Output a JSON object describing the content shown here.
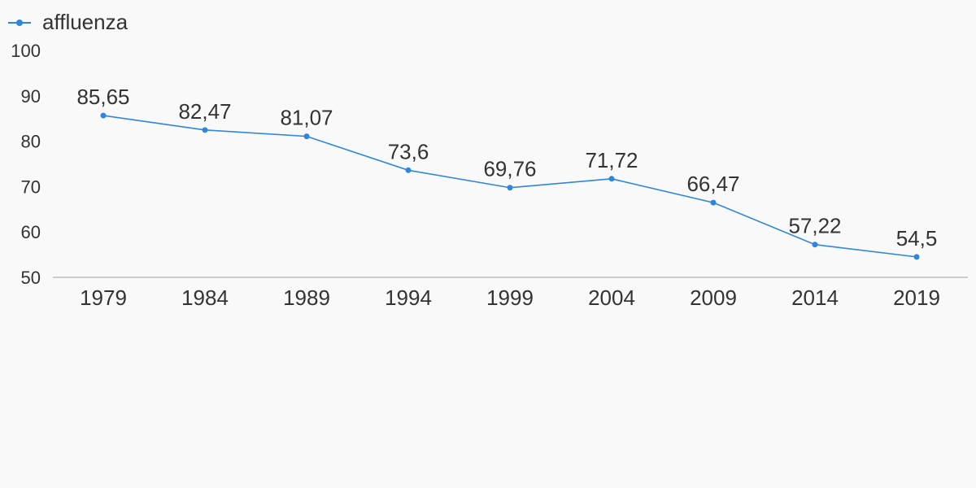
{
  "chart_data": {
    "type": "line",
    "categories": [
      "1979",
      "1984",
      "1989",
      "1994",
      "1999",
      "2004",
      "2009",
      "2014",
      "2019"
    ],
    "series": [
      {
        "name": "affluenza",
        "values": [
          85.65,
          82.47,
          81.07,
          73.6,
          69.76,
          71.72,
          66.47,
          57.22,
          54.5
        ],
        "labels": [
          "85,65",
          "82,47",
          "81,07",
          "73,6",
          "69,76",
          "71,72",
          "66,47",
          "57,22",
          "54,5"
        ]
      }
    ],
    "ylim": [
      50,
      100
    ],
    "yticks": [
      "50",
      "60",
      "70",
      "80",
      "90",
      "100"
    ],
    "legend": "top-left",
    "grid": false,
    "colors": {
      "series": "#2e86de",
      "axis": "#cccccc",
      "text": "#333333",
      "background": "#f9f9f9"
    }
  }
}
